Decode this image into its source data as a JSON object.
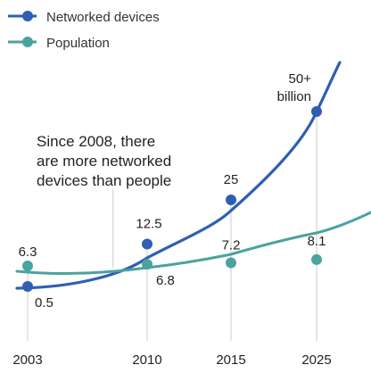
{
  "chart_data": {
    "type": "line",
    "legend": {
      "placement": "top-left",
      "entries": [
        {
          "label": "Networked devices",
          "color": "#2f5fb3"
        },
        {
          "label": "Population",
          "color": "#4aa3a0"
        }
      ]
    },
    "x_ticks": [
      "2003",
      "2010",
      "2015",
      "2025"
    ],
    "series": [
      {
        "name": "Networked devices",
        "color": "#2f5fb3",
        "points": [
          {
            "x": 2003,
            "y": 0.5,
            "label": "0.5"
          },
          {
            "x": 2010,
            "y": 12.5,
            "label": "12.5"
          },
          {
            "x": 2015,
            "y": 25,
            "label": "25"
          },
          {
            "x": 2025,
            "y": 50,
            "label": "50+\nbillion"
          }
        ]
      },
      {
        "name": "Population",
        "color": "#4aa3a0",
        "points": [
          {
            "x": 2003,
            "y": 6.3,
            "label": "6.3"
          },
          {
            "x": 2010,
            "y": 6.8,
            "label": "6.8"
          },
          {
            "x": 2015,
            "y": 7.2,
            "label": "7.2"
          },
          {
            "x": 2025,
            "y": 8.1,
            "label": "8.1"
          }
        ]
      }
    ],
    "annotation": {
      "text": "Since 2008, there\nare more networked\ndevices than people",
      "x": 2008
    },
    "grid": false
  }
}
